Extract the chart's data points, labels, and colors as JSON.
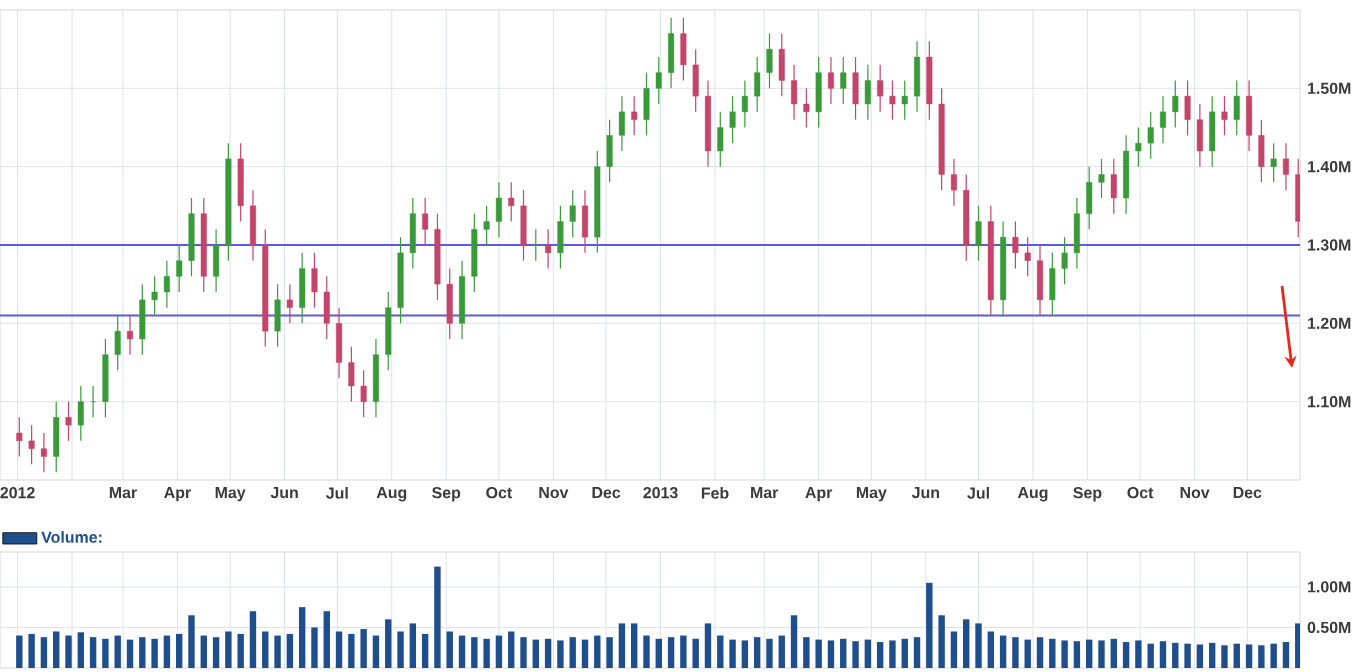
{
  "chart_data": [
    {
      "type": "candlestick",
      "x": [
        "2012-01-02",
        "2012-01-09",
        "2012-01-16",
        "2012-01-23",
        "2012-01-30",
        "2012-02-06",
        "2012-02-13",
        "2012-02-20",
        "2012-02-27",
        "2012-03-05",
        "2012-03-12",
        "2012-03-19",
        "2012-03-26",
        "2012-04-02",
        "2012-04-09",
        "2012-04-16",
        "2012-04-23",
        "2012-04-30",
        "2012-05-07",
        "2012-05-14",
        "2012-05-21",
        "2012-05-28",
        "2012-06-04",
        "2012-06-11",
        "2012-06-18",
        "2012-06-25",
        "2012-07-02",
        "2012-07-09",
        "2012-07-16",
        "2012-07-23",
        "2012-07-30",
        "2012-08-06",
        "2012-08-13",
        "2012-08-20",
        "2012-08-27",
        "2012-09-03",
        "2012-09-10",
        "2012-09-17",
        "2012-09-24",
        "2012-10-01",
        "2012-10-08",
        "2012-10-15",
        "2012-10-22",
        "2012-10-29",
        "2012-11-05",
        "2012-11-12",
        "2012-11-19",
        "2012-11-26",
        "2012-12-03",
        "2012-12-10",
        "2012-12-17",
        "2012-12-24",
        "2012-12-31",
        "2013-01-07",
        "2013-01-14",
        "2013-01-21",
        "2013-01-28",
        "2013-02-04",
        "2013-02-11",
        "2013-02-18",
        "2013-02-25",
        "2013-03-04",
        "2013-03-11",
        "2013-03-18",
        "2013-03-25",
        "2013-04-01",
        "2013-04-08",
        "2013-04-15",
        "2013-04-22",
        "2013-04-29",
        "2013-05-06",
        "2013-05-13",
        "2013-05-20",
        "2013-05-27",
        "2013-06-03",
        "2013-06-10",
        "2013-06-17",
        "2013-06-24",
        "2013-07-01",
        "2013-07-08",
        "2013-07-15",
        "2013-07-22",
        "2013-07-29",
        "2013-08-05",
        "2013-08-12",
        "2013-08-19",
        "2013-08-26",
        "2013-09-02",
        "2013-09-09",
        "2013-09-16",
        "2013-09-23",
        "2013-09-30",
        "2013-10-07",
        "2013-10-14",
        "2013-10-21",
        "2013-10-28",
        "2013-11-04",
        "2013-11-11",
        "2013-11-18",
        "2013-11-25",
        "2013-12-02",
        "2013-12-09",
        "2013-12-16",
        "2013-12-23",
        "2013-12-30"
      ],
      "ohlc": [
        [
          1.06,
          1.08,
          1.03,
          1.05
        ],
        [
          1.05,
          1.07,
          1.02,
          1.04
        ],
        [
          1.04,
          1.06,
          1.01,
          1.03
        ],
        [
          1.03,
          1.1,
          1.01,
          1.08
        ],
        [
          1.08,
          1.1,
          1.05,
          1.07
        ],
        [
          1.07,
          1.12,
          1.05,
          1.1
        ],
        [
          1.1,
          1.12,
          1.08,
          1.1
        ],
        [
          1.1,
          1.18,
          1.08,
          1.16
        ],
        [
          1.16,
          1.21,
          1.14,
          1.19
        ],
        [
          1.19,
          1.21,
          1.16,
          1.18
        ],
        [
          1.18,
          1.25,
          1.16,
          1.23
        ],
        [
          1.23,
          1.26,
          1.21,
          1.24
        ],
        [
          1.24,
          1.28,
          1.22,
          1.26
        ],
        [
          1.26,
          1.3,
          1.24,
          1.28
        ],
        [
          1.28,
          1.36,
          1.26,
          1.34
        ],
        [
          1.34,
          1.36,
          1.24,
          1.26
        ],
        [
          1.26,
          1.32,
          1.24,
          1.3
        ],
        [
          1.3,
          1.43,
          1.28,
          1.41
        ],
        [
          1.41,
          1.43,
          1.33,
          1.35
        ],
        [
          1.35,
          1.37,
          1.28,
          1.3
        ],
        [
          1.3,
          1.32,
          1.17,
          1.19
        ],
        [
          1.19,
          1.25,
          1.17,
          1.23
        ],
        [
          1.23,
          1.25,
          1.2,
          1.22
        ],
        [
          1.22,
          1.29,
          1.2,
          1.27
        ],
        [
          1.27,
          1.29,
          1.22,
          1.24
        ],
        [
          1.24,
          1.26,
          1.18,
          1.2
        ],
        [
          1.2,
          1.22,
          1.13,
          1.15
        ],
        [
          1.15,
          1.17,
          1.1,
          1.12
        ],
        [
          1.12,
          1.14,
          1.08,
          1.1
        ],
        [
          1.1,
          1.18,
          1.08,
          1.16
        ],
        [
          1.16,
          1.24,
          1.14,
          1.22
        ],
        [
          1.22,
          1.31,
          1.2,
          1.29
        ],
        [
          1.29,
          1.36,
          1.27,
          1.34
        ],
        [
          1.34,
          1.36,
          1.3,
          1.32
        ],
        [
          1.32,
          1.34,
          1.23,
          1.25
        ],
        [
          1.25,
          1.27,
          1.18,
          1.2
        ],
        [
          1.2,
          1.28,
          1.18,
          1.26
        ],
        [
          1.26,
          1.34,
          1.24,
          1.32
        ],
        [
          1.32,
          1.35,
          1.3,
          1.33
        ],
        [
          1.33,
          1.38,
          1.31,
          1.36
        ],
        [
          1.36,
          1.38,
          1.33,
          1.35
        ],
        [
          1.35,
          1.37,
          1.28,
          1.3
        ],
        [
          1.3,
          1.32,
          1.28,
          1.3
        ],
        [
          1.3,
          1.32,
          1.27,
          1.29
        ],
        [
          1.29,
          1.35,
          1.27,
          1.33
        ],
        [
          1.33,
          1.37,
          1.31,
          1.35
        ],
        [
          1.35,
          1.37,
          1.29,
          1.31
        ],
        [
          1.31,
          1.42,
          1.29,
          1.4
        ],
        [
          1.4,
          1.46,
          1.38,
          1.44
        ],
        [
          1.44,
          1.49,
          1.42,
          1.47
        ],
        [
          1.47,
          1.49,
          1.44,
          1.46
        ],
        [
          1.46,
          1.52,
          1.44,
          1.5
        ],
        [
          1.5,
          1.54,
          1.48,
          1.52
        ],
        [
          1.52,
          1.59,
          1.5,
          1.57
        ],
        [
          1.57,
          1.59,
          1.51,
          1.53
        ],
        [
          1.53,
          1.55,
          1.47,
          1.49
        ],
        [
          1.49,
          1.51,
          1.4,
          1.42
        ],
        [
          1.42,
          1.47,
          1.4,
          1.45
        ],
        [
          1.45,
          1.49,
          1.43,
          1.47
        ],
        [
          1.47,
          1.51,
          1.45,
          1.49
        ],
        [
          1.49,
          1.54,
          1.47,
          1.52
        ],
        [
          1.52,
          1.57,
          1.5,
          1.55
        ],
        [
          1.55,
          1.57,
          1.49,
          1.51
        ],
        [
          1.51,
          1.53,
          1.46,
          1.48
        ],
        [
          1.48,
          1.5,
          1.45,
          1.47
        ],
        [
          1.47,
          1.54,
          1.45,
          1.52
        ],
        [
          1.52,
          1.54,
          1.48,
          1.5
        ],
        [
          1.5,
          1.54,
          1.48,
          1.52
        ],
        [
          1.52,
          1.54,
          1.46,
          1.48
        ],
        [
          1.48,
          1.53,
          1.46,
          1.51
        ],
        [
          1.51,
          1.53,
          1.47,
          1.49
        ],
        [
          1.49,
          1.51,
          1.46,
          1.48
        ],
        [
          1.48,
          1.51,
          1.46,
          1.49
        ],
        [
          1.49,
          1.56,
          1.47,
          1.54
        ],
        [
          1.54,
          1.56,
          1.46,
          1.48
        ],
        [
          1.48,
          1.5,
          1.37,
          1.39
        ],
        [
          1.39,
          1.41,
          1.35,
          1.37
        ],
        [
          1.37,
          1.39,
          1.28,
          1.3
        ],
        [
          1.3,
          1.35,
          1.28,
          1.33
        ],
        [
          1.33,
          1.35,
          1.21,
          1.23
        ],
        [
          1.23,
          1.33,
          1.21,
          1.31
        ],
        [
          1.31,
          1.33,
          1.27,
          1.29
        ],
        [
          1.29,
          1.31,
          1.26,
          1.28
        ],
        [
          1.28,
          1.3,
          1.21,
          1.23
        ],
        [
          1.23,
          1.29,
          1.21,
          1.27
        ],
        [
          1.27,
          1.31,
          1.25,
          1.29
        ],
        [
          1.29,
          1.36,
          1.27,
          1.34
        ],
        [
          1.34,
          1.4,
          1.32,
          1.38
        ],
        [
          1.38,
          1.41,
          1.36,
          1.39
        ],
        [
          1.39,
          1.41,
          1.34,
          1.36
        ],
        [
          1.36,
          1.44,
          1.34,
          1.42
        ],
        [
          1.42,
          1.45,
          1.4,
          1.43
        ],
        [
          1.43,
          1.47,
          1.41,
          1.45
        ],
        [
          1.45,
          1.49,
          1.43,
          1.47
        ],
        [
          1.47,
          1.51,
          1.45,
          1.49
        ],
        [
          1.49,
          1.51,
          1.44,
          1.46
        ],
        [
          1.46,
          1.48,
          1.4,
          1.42
        ],
        [
          1.42,
          1.49,
          1.4,
          1.47
        ],
        [
          1.47,
          1.49,
          1.44,
          1.46
        ],
        [
          1.46,
          1.51,
          1.44,
          1.49
        ],
        [
          1.49,
          1.51,
          1.42,
          1.44
        ],
        [
          1.44,
          1.46,
          1.38,
          1.4
        ],
        [
          1.4,
          1.43,
          1.38,
          1.41
        ],
        [
          1.41,
          1.43,
          1.37,
          1.39
        ],
        [
          1.39,
          1.41,
          1.31,
          1.33
        ]
      ],
      "xlim": [
        "2011-12-22",
        "2013-12-31"
      ],
      "ylim": [
        1.0,
        1.6
      ],
      "xticks": [
        {
          "value": "2012-01-01",
          "label": "2012"
        },
        {
          "value": "2012-02-01",
          "label": null
        },
        {
          "value": "2012-03-01",
          "label": "Mar"
        },
        {
          "value": "2012-04-01",
          "label": "Apr"
        },
        {
          "value": "2012-05-01",
          "label": "May"
        },
        {
          "value": "2012-06-01",
          "label": "Jun"
        },
        {
          "value": "2012-07-01",
          "label": "Jul"
        },
        {
          "value": "2012-08-01",
          "label": "Aug"
        },
        {
          "value": "2012-09-01",
          "label": "Sep"
        },
        {
          "value": "2012-10-01",
          "label": "Oct"
        },
        {
          "value": "2012-11-01",
          "label": "Nov"
        },
        {
          "value": "2012-12-01",
          "label": "Dec"
        },
        {
          "value": "2013-01-01",
          "label": "2013"
        },
        {
          "value": "2013-02-01",
          "label": "Feb"
        },
        {
          "value": "2013-03-01",
          "label": "Mar"
        },
        {
          "value": "2013-04-01",
          "label": "Apr"
        },
        {
          "value": "2013-05-01",
          "label": "May"
        },
        {
          "value": "2013-06-01",
          "label": "Jun"
        },
        {
          "value": "2013-07-01",
          "label": "Jul"
        },
        {
          "value": "2013-08-01",
          "label": "Aug"
        },
        {
          "value": "2013-09-01",
          "label": "Sep"
        },
        {
          "value": "2013-10-01",
          "label": "Oct"
        },
        {
          "value": "2013-11-01",
          "label": "Nov"
        },
        {
          "value": "2013-12-01",
          "label": "Dec"
        }
      ],
      "yticks": [
        {
          "value": 1.1,
          "label": "1.10M"
        },
        {
          "value": 1.2,
          "label": "1.20M"
        },
        {
          "value": 1.3,
          "label": "1.30M"
        },
        {
          "value": 1.4,
          "label": "1.40M"
        },
        {
          "value": 1.5,
          "label": "1.50M"
        }
      ],
      "grid": true,
      "ref_lines": [
        {
          "axis": "y",
          "value": 1.3,
          "color": "#5a5ae6"
        },
        {
          "axis": "y",
          "value": 1.21,
          "color": "#5a5ae6"
        }
      ]
    },
    {
      "type": "bar",
      "x": [
        "2012-01-02",
        "2012-01-09",
        "2012-01-16",
        "2012-01-23",
        "2012-01-30",
        "2012-02-06",
        "2012-02-13",
        "2012-02-20",
        "2012-02-27",
        "2012-03-05",
        "2012-03-12",
        "2012-03-19",
        "2012-03-26",
        "2012-04-02",
        "2012-04-09",
        "2012-04-16",
        "2012-04-23",
        "2012-04-30",
        "2012-05-07",
        "2012-05-14",
        "2012-05-21",
        "2012-05-28",
        "2012-06-04",
        "2012-06-11",
        "2012-06-18",
        "2012-06-25",
        "2012-07-02",
        "2012-07-09",
        "2012-07-16",
        "2012-07-23",
        "2012-07-30",
        "2012-08-06",
        "2012-08-13",
        "2012-08-20",
        "2012-08-27",
        "2012-09-03",
        "2012-09-10",
        "2012-09-17",
        "2012-09-24",
        "2012-10-01",
        "2012-10-08",
        "2012-10-15",
        "2012-10-22",
        "2012-10-29",
        "2012-11-05",
        "2012-11-12",
        "2012-11-19",
        "2012-11-26",
        "2012-12-03",
        "2012-12-10",
        "2012-12-17",
        "2012-12-24",
        "2012-12-31",
        "2013-01-07",
        "2013-01-14",
        "2013-01-21",
        "2013-01-28",
        "2013-02-04",
        "2013-02-11",
        "2013-02-18",
        "2013-02-25",
        "2013-03-04",
        "2013-03-11",
        "2013-03-18",
        "2013-03-25",
        "2013-04-01",
        "2013-04-08",
        "2013-04-15",
        "2013-04-22",
        "2013-04-29",
        "2013-05-06",
        "2013-05-13",
        "2013-05-20",
        "2013-05-27",
        "2013-06-03",
        "2013-06-10",
        "2013-06-17",
        "2013-06-24",
        "2013-07-01",
        "2013-07-08",
        "2013-07-15",
        "2013-07-22",
        "2013-07-29",
        "2013-08-05",
        "2013-08-12",
        "2013-08-19",
        "2013-08-26",
        "2013-09-02",
        "2013-09-09",
        "2013-09-16",
        "2013-09-23",
        "2013-09-30",
        "2013-10-07",
        "2013-10-14",
        "2013-10-21",
        "2013-10-28",
        "2013-11-04",
        "2013-11-11",
        "2013-11-18",
        "2013-11-25",
        "2013-12-02",
        "2013-12-09",
        "2013-12-16",
        "2013-12-23",
        "2013-12-30"
      ],
      "series": [
        {
          "name": "Volume:",
          "color": "#1f4e8c",
          "values": [
            0.4,
            0.42,
            0.38,
            0.45,
            0.4,
            0.44,
            0.38,
            0.36,
            0.4,
            0.35,
            0.38,
            0.36,
            0.4,
            0.42,
            0.65,
            0.4,
            0.38,
            0.45,
            0.42,
            0.7,
            0.45,
            0.4,
            0.42,
            0.75,
            0.5,
            0.7,
            0.45,
            0.42,
            0.48,
            0.4,
            0.6,
            0.45,
            0.55,
            0.42,
            1.25,
            0.45,
            0.4,
            0.38,
            0.36,
            0.4,
            0.45,
            0.38,
            0.35,
            0.36,
            0.34,
            0.38,
            0.35,
            0.4,
            0.38,
            0.55,
            0.55,
            0.4,
            0.36,
            0.38,
            0.4,
            0.36,
            0.55,
            0.4,
            0.35,
            0.34,
            0.38,
            0.36,
            0.4,
            0.65,
            0.38,
            0.35,
            0.34,
            0.36,
            0.33,
            0.35,
            0.32,
            0.34,
            0.36,
            0.38,
            1.05,
            0.65,
            0.45,
            0.6,
            0.55,
            0.45,
            0.4,
            0.38,
            0.35,
            0.38,
            0.36,
            0.34,
            0.33,
            0.35,
            0.34,
            0.36,
            0.32,
            0.34,
            0.3,
            0.33,
            0.31,
            0.3,
            0.29,
            0.31,
            0.28,
            0.3,
            0.29,
            0.28,
            0.3,
            0.32,
            0.55
          ]
        }
      ],
      "xlim": [
        "2011-12-22",
        "2013-12-31"
      ],
      "ylim": [
        0,
        1.43
      ],
      "xticks": [
        {
          "value": "2012-01-01",
          "label": null
        },
        {
          "value": "2012-02-01",
          "label": null
        },
        {
          "value": "2012-03-01",
          "label": null
        },
        {
          "value": "2012-04-01",
          "label": null
        },
        {
          "value": "2012-05-01",
          "label": null
        },
        {
          "value": "2012-06-01",
          "label": null
        },
        {
          "value": "2012-07-01",
          "label": null
        },
        {
          "value": "2012-08-01",
          "label": null
        },
        {
          "value": "2012-09-01",
          "label": null
        },
        {
          "value": "2012-10-01",
          "label": null
        },
        {
          "value": "2012-11-01",
          "label": null
        },
        {
          "value": "2012-12-01",
          "label": null
        },
        {
          "value": "2013-01-01",
          "label": null
        },
        {
          "value": "2013-02-01",
          "label": null
        },
        {
          "value": "2013-03-01",
          "label": null
        },
        {
          "value": "2013-04-01",
          "label": null
        },
        {
          "value": "2013-05-01",
          "label": null
        },
        {
          "value": "2013-06-01",
          "label": null
        },
        {
          "value": "2013-07-01",
          "label": null
        },
        {
          "value": "2013-08-01",
          "label": null
        },
        {
          "value": "2013-09-01",
          "label": null
        },
        {
          "value": "2013-10-01",
          "label": null
        },
        {
          "value": "2013-11-01",
          "label": null
        },
        {
          "value": "2013-12-01",
          "label": null
        }
      ],
      "yticks": [
        {
          "value": 0.5,
          "label": "0.50M"
        },
        {
          "value": 1.0,
          "label": "1.00M"
        }
      ],
      "grid": true,
      "legend": "top left",
      "tick_labels": "y"
    }
  ]
}
